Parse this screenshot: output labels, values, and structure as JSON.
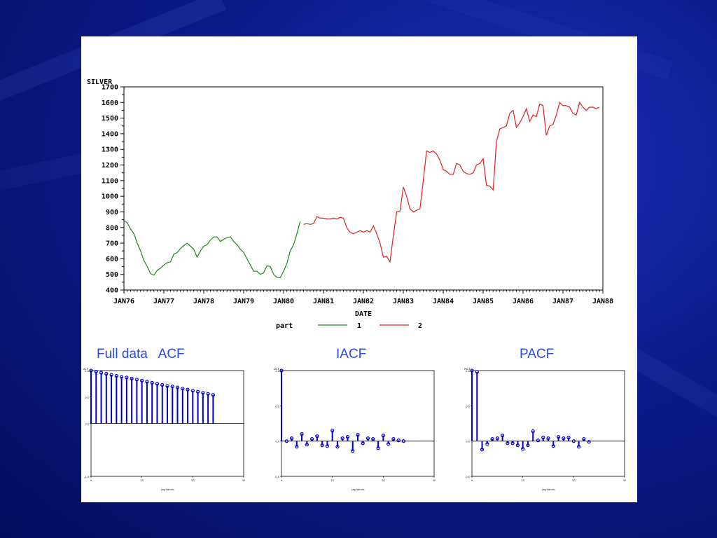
{
  "colors": {
    "part1": "#1a8a1a",
    "part2": "#e02020",
    "corr": "#0000cc",
    "title": "#2b4ce0"
  },
  "chart_data": [
    {
      "type": "line",
      "ylabel": "SILVER",
      "xlabel": "DATE",
      "ylim": [
        400,
        1700
      ],
      "yticks": [
        "400",
        "500",
        "600",
        "700",
        "800",
        "900",
        "1000",
        "1100",
        "1200",
        "1300",
        "1400",
        "1500",
        "1600",
        "1700"
      ],
      "xticks": [
        "JAN76",
        "JAN77",
        "JAN78",
        "JAN79",
        "JAN80",
        "JAN81",
        "JAN82",
        "JAN83",
        "JAN84",
        "JAN85",
        "JAN86",
        "JAN87",
        "JAN88"
      ],
      "legend": {
        "title": "part",
        "entries": [
          "1",
          "2"
        ],
        "placement": "bottom-center"
      },
      "grid": false,
      "series": [
        {
          "name": "1",
          "x": [
            1976.0,
            1976.083,
            1976.167,
            1976.25,
            1976.333,
            1976.417,
            1976.5,
            1976.583,
            1976.667,
            1976.75,
            1976.833,
            1976.917,
            1977.0,
            1977.083,
            1977.167,
            1977.25,
            1977.333,
            1977.417,
            1977.5,
            1977.583,
            1977.667,
            1977.75,
            1977.833,
            1977.917,
            1978.0,
            1978.083,
            1978.167,
            1978.25,
            1978.333,
            1978.417,
            1978.5,
            1978.583,
            1978.667,
            1978.75,
            1978.833,
            1978.917,
            1979.0,
            1979.083,
            1979.167,
            1979.25,
            1979.333,
            1979.417,
            1979.5,
            1979.583,
            1979.667,
            1979.75,
            1979.833,
            1979.917,
            1980.0,
            1980.083,
            1980.167,
            1980.25,
            1980.333,
            1980.417
          ],
          "y": [
            845,
            830,
            790,
            760,
            700,
            650,
            590,
            550,
            505,
            495,
            525,
            540,
            560,
            575,
            580,
            630,
            640,
            665,
            685,
            700,
            680,
            660,
            610,
            650,
            680,
            690,
            720,
            740,
            740,
            710,
            725,
            735,
            740,
            710,
            690,
            660,
            640,
            600,
            560,
            520,
            520,
            500,
            510,
            555,
            550,
            500,
            480,
            480,
            520,
            570,
            650,
            690,
            760,
            840
          ]
        },
        {
          "name": "2",
          "x": [
            1980.5,
            1980.583,
            1980.667,
            1980.75,
            1980.833,
            1980.917,
            1981.0,
            1981.083,
            1981.167,
            1981.25,
            1981.333,
            1981.417,
            1981.5,
            1981.583,
            1981.667,
            1981.75,
            1981.833,
            1981.917,
            1982.0,
            1982.083,
            1982.167,
            1982.25,
            1982.333,
            1982.417,
            1982.5,
            1982.583,
            1982.667,
            1982.75,
            1982.833,
            1982.917,
            1983.0,
            1983.083,
            1983.167,
            1983.25,
            1983.333,
            1983.417,
            1983.5,
            1983.583,
            1983.667,
            1983.75,
            1983.833,
            1983.917,
            1984.0,
            1984.083,
            1984.167,
            1984.25,
            1984.333,
            1984.417,
            1984.5,
            1984.583,
            1984.667,
            1984.75,
            1984.833,
            1984.917,
            1985.0,
            1985.083,
            1985.167,
            1985.25,
            1985.333,
            1985.417,
            1985.5,
            1985.583,
            1985.667,
            1985.75,
            1985.833,
            1985.917,
            1986.0,
            1986.083,
            1986.167,
            1986.25,
            1986.333,
            1986.417,
            1986.5,
            1986.583,
            1986.667,
            1986.75,
            1986.833,
            1986.917,
            1987.0,
            1987.083,
            1987.167,
            1987.25,
            1987.333,
            1987.417,
            1987.5,
            1987.583,
            1987.667,
            1987.75,
            1987.833,
            1987.917
          ],
          "y": [
            820,
            825,
            820,
            825,
            870,
            860,
            860,
            855,
            855,
            860,
            855,
            865,
            860,
            800,
            770,
            760,
            770,
            780,
            770,
            780,
            770,
            810,
            760,
            700,
            610,
            615,
            580,
            750,
            900,
            905,
            1060,
            1000,
            920,
            900,
            910,
            920,
            1100,
            1290,
            1280,
            1290,
            1270,
            1230,
            1170,
            1160,
            1140,
            1140,
            1210,
            1200,
            1160,
            1145,
            1140,
            1150,
            1200,
            1210,
            1240,
            1070,
            1065,
            1040,
            1350,
            1430,
            1440,
            1450,
            1530,
            1550,
            1440,
            1470,
            1510,
            1560,
            1480,
            1520,
            1510,
            1590,
            1580,
            1390,
            1450,
            1460,
            1520,
            1600,
            1580,
            1580,
            1570,
            1530,
            1520,
            1600,
            1570,
            1550,
            1570,
            1570,
            1560,
            1570
          ]
        }
      ]
    },
    {
      "type": "bar",
      "title": "Full data   ACF",
      "ylabel": "ACF",
      "xlabel": "Lag Values",
      "ylim": [
        -1.0,
        1.0
      ],
      "yticks": [
        "-1.0",
        "0.0",
        "0.5",
        "1.0"
      ],
      "xticks": [
        "0",
        "10",
        "20",
        "30"
      ],
      "lags": [
        0,
        1,
        2,
        3,
        4,
        5,
        6,
        7,
        8,
        9,
        10,
        11,
        12,
        13,
        14,
        15,
        16,
        17,
        18,
        19,
        20,
        21,
        22,
        23,
        24
      ],
      "values": [
        1.0,
        0.98,
        0.96,
        0.94,
        0.92,
        0.9,
        0.88,
        0.87,
        0.85,
        0.83,
        0.81,
        0.79,
        0.77,
        0.75,
        0.73,
        0.71,
        0.7,
        0.68,
        0.66,
        0.64,
        0.62,
        0.6,
        0.58,
        0.56,
        0.54
      ]
    },
    {
      "type": "bar",
      "title": "IACF",
      "ylabel": "IACF",
      "xlabel": "Lag Values",
      "ylim": [
        -0.5,
        1.0
      ],
      "yticks": [
        "-0.5",
        "0.0",
        "0.5",
        "1.0"
      ],
      "xticks": [
        "0",
        "10",
        "20",
        "30"
      ],
      "lags": [
        0,
        1,
        2,
        3,
        4,
        5,
        6,
        7,
        8,
        9,
        10,
        11,
        12,
        13,
        14,
        15,
        16,
        17,
        18,
        19,
        20,
        21,
        22,
        23,
        24
      ],
      "values": [
        1.0,
        0.0,
        0.04,
        -0.08,
        0.1,
        -0.05,
        0.03,
        0.07,
        -0.06,
        -0.07,
        0.15,
        -0.08,
        0.04,
        0.06,
        -0.14,
        0.09,
        -0.03,
        0.04,
        0.03,
        -0.1,
        0.08,
        -0.04,
        0.03,
        0.01,
        0.0
      ]
    },
    {
      "type": "bar",
      "title": "PACF",
      "ylabel": "PACF",
      "xlabel": "Lag Values",
      "ylim": [
        -0.5,
        1.0
      ],
      "yticks": [
        "-0.5",
        "0.0",
        "0.5",
        "1.0"
      ],
      "xticks": [
        "0",
        "10",
        "20",
        "30"
      ],
      "lags": [
        0,
        1,
        2,
        3,
        4,
        5,
        6,
        7,
        8,
        9,
        10,
        11,
        12,
        13,
        14,
        15,
        16,
        17,
        18,
        19,
        20,
        21,
        22,
        23
      ],
      "values": [
        1.0,
        0.98,
        -0.12,
        -0.04,
        0.03,
        0.04,
        0.08,
        -0.03,
        -0.03,
        -0.06,
        -0.11,
        -0.06,
        0.14,
        0.01,
        0.05,
        0.04,
        -0.07,
        0.06,
        0.04,
        0.05,
        0.0,
        -0.08,
        0.03,
        -0.01
      ]
    }
  ]
}
